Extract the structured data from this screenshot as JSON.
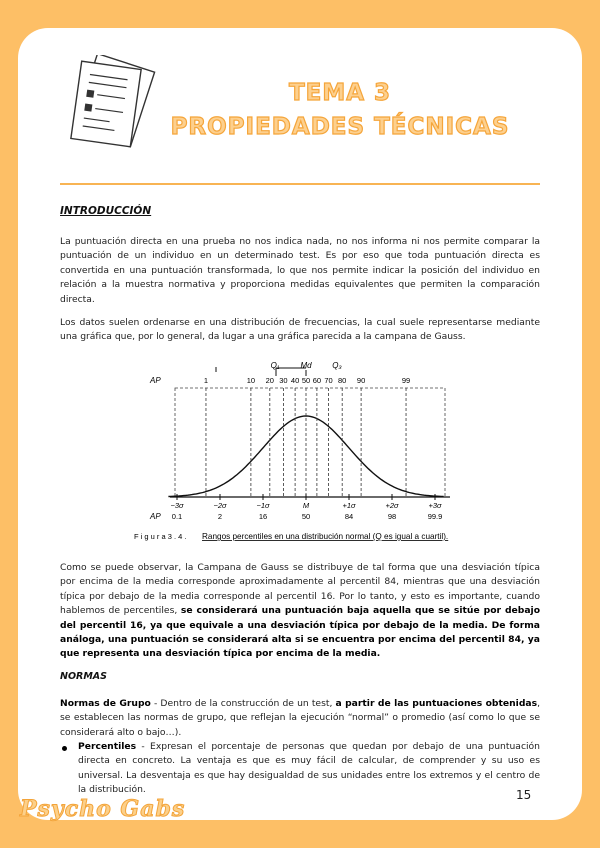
{
  "title": [
    "TEMA 3",
    "PROPIEDADES TÉCNICAS"
  ],
  "intro": {
    "heading": "INTRODUCCIÓN",
    "paragraphs": [
      "La puntuación directa en una prueba no nos indica nada, no nos informa ni nos permite comparar la puntuación de un individuo en un determinado test. Es por eso que toda puntuación directa es convertida en una puntuación transformada, lo que nos permite indicar la posición del individuo en relación a la muestra normativa y proporciona medidas equivalentes que permiten la comparación directa.",
      "Los datos suelen ordenarse en una distribución de frecuencias, la cual suele representarse mediante una gráfica que, por lo general, da lugar a una gráfica parecida a la campana de Gauss."
    ]
  },
  "figure": {
    "quartile_labels": [
      "Q₁",
      "Md",
      "Q₃"
    ],
    "ap_label": "AP",
    "percentiles": [
      "1",
      "10",
      "20",
      "30",
      "40",
      "50",
      "60",
      "70",
      "80",
      "90",
      "99"
    ],
    "sigma_labels": [
      "−3σ",
      "−2σ",
      "−1σ",
      "M",
      "+1σ",
      "+2σ",
      "+3σ"
    ],
    "bottom_percentiles": [
      "0.1",
      "2",
      "16",
      "50",
      "84",
      "98",
      "99.9"
    ],
    "caption_number": "F i g u r a   3 . 4 .",
    "caption": "Rangos percentiles en una distribución normal (Q es igual a cuartil)."
  },
  "paragraph3": [
    "Como se puede observar, la Campana de Gauss se distribuye de tal forma que una desviación típica por encima de la media corresponde aproximadamente al percentil 84, mientras que una desviación típica por debajo de la media corresponde al percentil 16. Por lo tanto, y esto es importante, cuando hablemos de percentiles, ",
    "se considerará una puntuación baja aquella que se sitúe por debajo del percentil 16, ya que equivale a una desviación típica por debajo de la media. De forma análoga, una puntuación se considerará alta si se encuentra por encima del percentil 84, ya que representa una desviación típica por encima de la media."
  ],
  "normas": {
    "heading": "NORMAS",
    "paragraph": [
      "Normas de Grupo",
      " - Dentro de la construcción de un test, ",
      "a partir de las puntuaciones obtenidas",
      ", se establecen las normas de grupo, que reflejan la ejecución “normal” o promedio (así como lo que se considerará alto o bajo…)."
    ],
    "bullet": [
      "Percentiles",
      " - Expresan el porcentaje de personas que quedan por debajo de una puntuación directa en concreto. La ventaja es que es muy fácil de calcular, de comprender y su uso es universal. La desventaja es que hay desigualdad de sus unidades entre los extremos y el centro de la distribución."
    ]
  },
  "page_number": "15",
  "footer_brand": "Psycho Gabs"
}
